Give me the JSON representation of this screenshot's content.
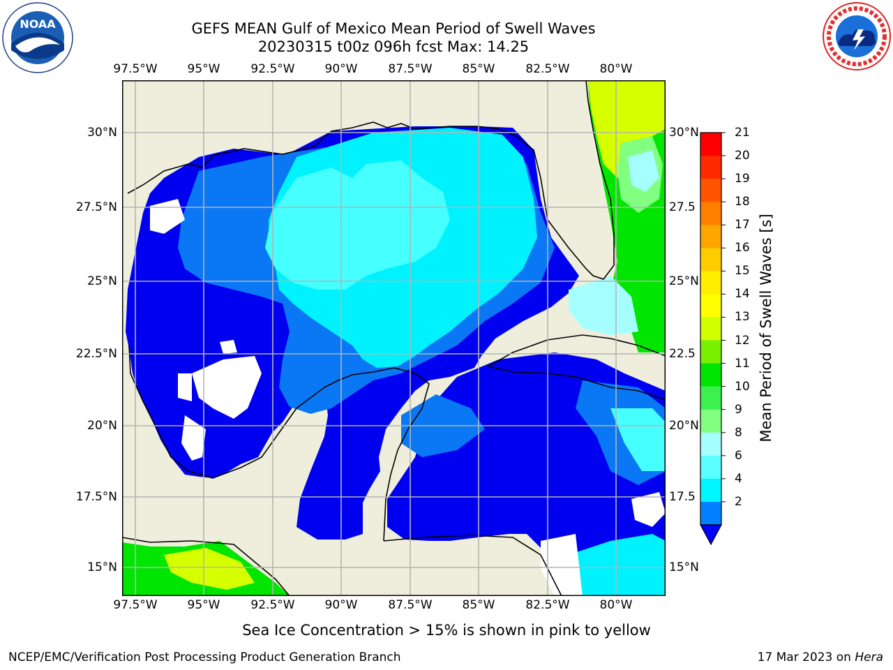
{
  "title": {
    "line1": "GEFS MEAN Gulf of Mexico Mean Period of Swell Waves",
    "line2": "20230315 t00z 096h fcst   Max: 14.25"
  },
  "map": {
    "lon_labels": [
      "97.5°W",
      "95°W",
      "92.5°W",
      "90°W",
      "87.5°W",
      "85°W",
      "82.5°W",
      "80°W"
    ],
    "lat_labels_left": [
      "30°N",
      "27.5°N",
      "25°N",
      "22.5°N",
      "20°N",
      "17.5°N",
      "15°N"
    ],
    "lat_labels_right": [
      "30°N",
      "27.5",
      "25°N",
      "22.5",
      "20°N",
      "17.5",
      "15°N"
    ],
    "lon_range": [
      -98,
      -78.2
    ],
    "lat_range": [
      14,
      31.6
    ],
    "colors": {
      "land": "#efeedc",
      "ocean_low": "#0000ff",
      "grid": "#b4b4b4"
    }
  },
  "colorbar": {
    "title": "Mean Period of Swell Waves [s]",
    "labels": [
      "21",
      "20",
      "19",
      "18",
      "17",
      "16",
      "15",
      "14",
      "13",
      "12",
      "11",
      "10",
      "9",
      "8",
      "6",
      "4",
      "2"
    ],
    "colors": [
      "#ff0000",
      "#ff2a00",
      "#ff5300",
      "#ff7f00",
      "#ffa500",
      "#ffcc00",
      "#ffee00",
      "#ffff00",
      "#d0ff00",
      "#78f000",
      "#00e600",
      "#3cf050",
      "#80ff80",
      "#a6ffff",
      "#5affff",
      "#00f6ff",
      "#0080ff"
    ],
    "extend_color": "#0000ff"
  },
  "note": "Sea Ice Concentration > 15% is shown in pink to yellow",
  "footer": {
    "left": "NCEP/EMC/Verification Post Processing Product Generation Branch",
    "right_date": "17 Mar 2023 on ",
    "right_host": "Hera"
  }
}
